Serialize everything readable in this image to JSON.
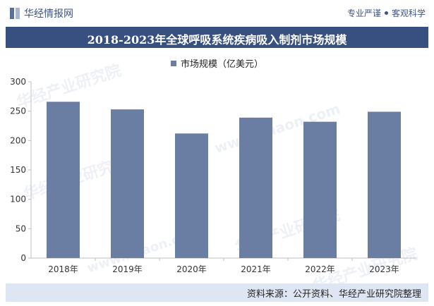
{
  "header": {
    "brand": "华经情报网",
    "tagline_part1": "专业严谨",
    "tagline_part2": "客观科学"
  },
  "watermark": {
    "text": "华经产业研究院",
    "url": "www.huaon.com"
  },
  "footer": {
    "source": "资料来源：公开资料、华经产业研究院整理"
  },
  "colors": {
    "title_bar": "#38507f",
    "bar": "#6a7da3",
    "footer_bar": "#dfe6f3"
  },
  "chart_data": {
    "type": "bar",
    "title": "2018-2023年全球呼吸系统疾病吸入制剂市场规模",
    "categories": [
      "2018年",
      "2019年",
      "2020年",
      "2021年",
      "2022年",
      "2023年"
    ],
    "series": [
      {
        "name": "市场规模（亿美元）",
        "values": [
          266,
          253,
          212,
          239,
          232,
          249
        ]
      }
    ],
    "ylim": [
      0,
      300
    ],
    "yticks": [
      0,
      50,
      100,
      150,
      200,
      250,
      300
    ],
    "ytick_labels": [
      "0",
      "50",
      "100",
      "150",
      "200",
      "250",
      "300"
    ],
    "xlabel": "",
    "ylabel": "",
    "legend_position": "top-center",
    "grid": false
  }
}
